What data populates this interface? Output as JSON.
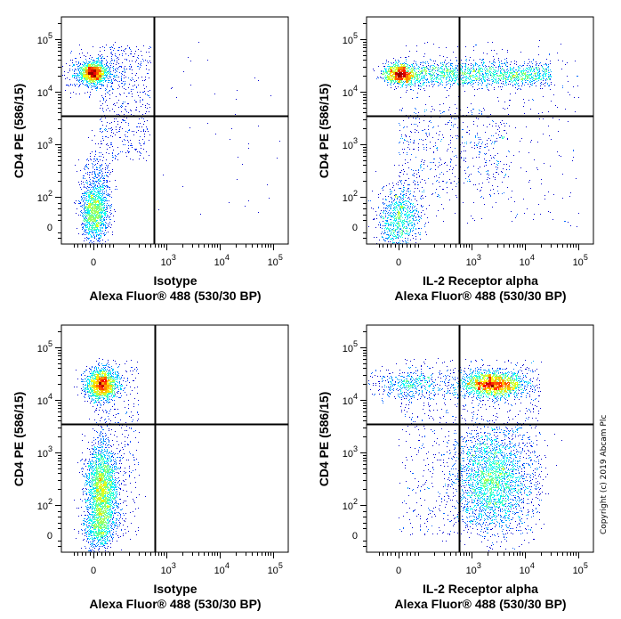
{
  "copyright": "Copyright (c) 2019 Abcam Plc",
  "colormap": [
    "#00008f",
    "#0000ff",
    "#00ffff",
    "#ffff00",
    "#ff0000"
  ],
  "chart_data": [
    {
      "type": "scatter",
      "title": "",
      "xlabel": [
        "Isotype",
        "Alexa Fluor® 488  (530/30 BP)"
      ],
      "ylabel": "CD4 PE (586/15)",
      "x_ticks": [
        {
          "base": "0",
          "exp": "",
          "value": 0
        },
        {
          "base": "10",
          "exp": "3",
          "value": 1000
        },
        {
          "base": "10",
          "exp": "4",
          "value": 10000
        },
        {
          "base": "10",
          "exp": "5",
          "value": 100000
        }
      ],
      "y_ticks": [
        {
          "base": "0",
          "exp": "",
          "value": 0
        },
        {
          "base": "10",
          "exp": "2",
          "value": 100
        },
        {
          "base": "10",
          "exp": "3",
          "value": 1000
        },
        {
          "base": "10",
          "exp": "4",
          "value": 10000
        },
        {
          "base": "10",
          "exp": "5",
          "value": 100000
        }
      ],
      "quadrant_gate": {
        "x": 580,
        "y": 3500
      },
      "populations": [
        {
          "x": -5,
          "y": 23000,
          "sx": 0.12,
          "sy": 0.1,
          "n": 1400
        },
        {
          "x": 0,
          "y": 23000,
          "sx": 0.3,
          "sy": 0.2,
          "n": 400
        },
        {
          "x": 5,
          "y": 40,
          "sx": 0.12,
          "sy": 0.25,
          "n": 1200
        },
        {
          "x": 10,
          "y": 150,
          "sx": 0.15,
          "sy": 0.35,
          "n": 500
        },
        {
          "x_range": [
            30,
            500
          ],
          "y_range": [
            500,
            80000
          ],
          "n": 500
        },
        {
          "x_range": [
            600,
            200000
          ],
          "y_range": [
            0,
            100000
          ],
          "n": 40
        }
      ]
    },
    {
      "type": "scatter",
      "title": "",
      "xlabel": [
        "IL-2 Receptor alpha",
        "Alexa Fluor® 488  (530/30 BP)"
      ],
      "ylabel": "CD4 PE (586/15)",
      "x_ticks": [
        {
          "base": "0",
          "exp": "",
          "value": 0
        },
        {
          "base": "10",
          "exp": "3",
          "value": 1000
        },
        {
          "base": "10",
          "exp": "4",
          "value": 10000
        },
        {
          "base": "10",
          "exp": "5",
          "value": 100000
        }
      ],
      "y_ticks": [
        {
          "base": "0",
          "exp": "",
          "value": 0
        },
        {
          "base": "10",
          "exp": "2",
          "value": 100
        },
        {
          "base": "10",
          "exp": "3",
          "value": 1000
        },
        {
          "base": "10",
          "exp": "4",
          "value": 10000
        },
        {
          "base": "10",
          "exp": "5",
          "value": 100000
        }
      ],
      "quadrant_gate": {
        "x": 580,
        "y": 3500
      },
      "populations": [
        {
          "x": 0,
          "y": 22000,
          "sx": 0.15,
          "sy": 0.1,
          "n": 900
        },
        {
          "x_range": [
            0,
            30000
          ],
          "y": 22000,
          "sy": 0.12,
          "n": 1800
        },
        {
          "x": 5,
          "y": 30,
          "sx": 0.2,
          "sy": 0.3,
          "n": 900
        },
        {
          "x_range": [
            0,
            5000
          ],
          "y_range": [
            100,
            5000
          ],
          "n": 500
        },
        {
          "x_range": [
            0,
            100000
          ],
          "y_range": [
            0,
            100000
          ],
          "n": 350
        }
      ]
    },
    {
      "type": "scatter",
      "title": "",
      "xlabel": [
        "Isotype",
        "Alexa Fluor® 488  (530/30 BP)"
      ],
      "ylabel": "CD4 PE (586/15)",
      "x_ticks": [
        {
          "base": "0",
          "exp": "",
          "value": 0
        },
        {
          "base": "10",
          "exp": "3",
          "value": 1000
        },
        {
          "base": "10",
          "exp": "4",
          "value": 10000
        },
        {
          "base": "10",
          "exp": "5",
          "value": 100000
        }
      ],
      "y_ticks": [
        {
          "base": "0",
          "exp": "",
          "value": 0
        },
        {
          "base": "10",
          "exp": "2",
          "value": 100
        },
        {
          "base": "10",
          "exp": "3",
          "value": 1000
        },
        {
          "base": "10",
          "exp": "4",
          "value": 10000
        },
        {
          "base": "10",
          "exp": "5",
          "value": 100000
        }
      ],
      "quadrant_gate": {
        "x": 600,
        "y": 3500
      },
      "populations": [
        {
          "x": 40,
          "y": 20000,
          "sx": 0.15,
          "sy": 0.15,
          "n": 1800
        },
        {
          "x": 40,
          "y": 200,
          "sx": 0.15,
          "sy": 0.45,
          "n": 2500
        },
        {
          "x": 30,
          "y": 20,
          "sx": 0.15,
          "sy": 0.2,
          "n": 600
        },
        {
          "x_range": [
            0,
            300
          ],
          "y_range": [
            0,
            60000
          ],
          "n": 400
        }
      ]
    },
    {
      "type": "scatter",
      "title": "",
      "xlabel": [
        "IL-2 Receptor alpha",
        "Alexa Fluor® 488  (530/30 BP)"
      ],
      "ylabel": "CD4 PE (586/15)",
      "x_ticks": [
        {
          "base": "0",
          "exp": "",
          "value": 0
        },
        {
          "base": "10",
          "exp": "3",
          "value": 1000
        },
        {
          "base": "10",
          "exp": "4",
          "value": 10000
        },
        {
          "base": "10",
          "exp": "5",
          "value": 100000
        }
      ],
      "y_ticks": [
        {
          "base": "0",
          "exp": "",
          "value": 0
        },
        {
          "base": "10",
          "exp": "2",
          "value": 100
        },
        {
          "base": "10",
          "exp": "3",
          "value": 1000
        },
        {
          "base": "10",
          "exp": "4",
          "value": 10000
        },
        {
          "base": "10",
          "exp": "5",
          "value": 100000
        }
      ],
      "quadrant_gate": {
        "x": 580,
        "y": 3500
      },
      "populations": [
        {
          "x": 2500,
          "y": 20000,
          "sx": 0.3,
          "sy": 0.12,
          "n": 2000
        },
        {
          "x": 50,
          "y": 20000,
          "sx": 0.4,
          "sy": 0.15,
          "n": 500
        },
        {
          "x": 2500,
          "y": 300,
          "sx": 0.35,
          "sy": 0.5,
          "n": 2500
        },
        {
          "x_range": [
            0,
            20000
          ],
          "y_range": [
            0,
            60000
          ],
          "n": 1000
        }
      ]
    }
  ]
}
